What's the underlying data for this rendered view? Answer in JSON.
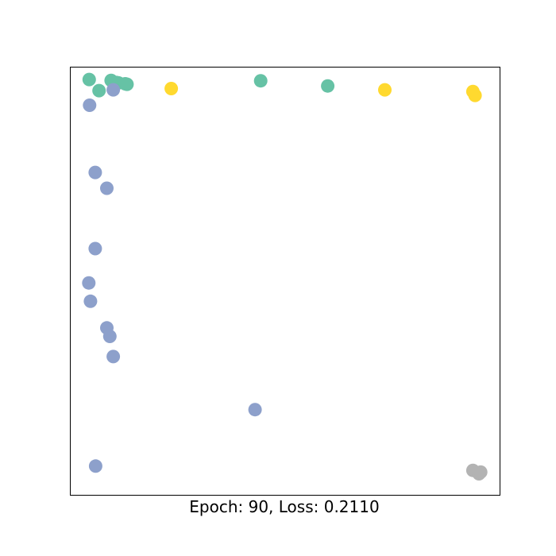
{
  "chart_data": {
    "type": "scatter",
    "title": "",
    "xlabel": "Epoch: 90, Loss: 0.2110",
    "ylabel": "",
    "xlim": [
      0,
      1
    ],
    "ylim": [
      0,
      1
    ],
    "grid": false,
    "ticks": false,
    "legend": "none",
    "groups": [
      {
        "color": "#66c2a5",
        "points": [
          [
            0.044,
            0.971
          ],
          [
            0.067,
            0.945
          ],
          [
            0.095,
            0.969
          ],
          [
            0.107,
            0.964
          ],
          [
            0.112,
            0.963
          ],
          [
            0.128,
            0.961
          ],
          [
            0.132,
            0.96
          ],
          [
            0.443,
            0.968
          ],
          [
            0.599,
            0.956
          ]
        ]
      },
      {
        "color": "#8da0cb",
        "points": [
          [
            0.045,
            0.911
          ],
          [
            0.1,
            0.947
          ],
          [
            0.058,
            0.754
          ],
          [
            0.085,
            0.717
          ],
          [
            0.058,
            0.576
          ],
          [
            0.043,
            0.496
          ],
          [
            0.047,
            0.453
          ],
          [
            0.085,
            0.391
          ],
          [
            0.092,
            0.371
          ],
          [
            0.1,
            0.324
          ],
          [
            0.43,
            0.2
          ],
          [
            0.059,
            0.068
          ]
        ]
      },
      {
        "color": "#ffd92f",
        "points": [
          [
            0.235,
            0.95
          ],
          [
            0.732,
            0.947
          ],
          [
            0.937,
            0.943
          ],
          [
            0.942,
            0.934
          ]
        ]
      },
      {
        "color": "#b3b3b3",
        "points": [
          [
            0.937,
            0.058
          ],
          [
            0.951,
            0.05
          ],
          [
            0.955,
            0.054
          ]
        ]
      }
    ]
  }
}
